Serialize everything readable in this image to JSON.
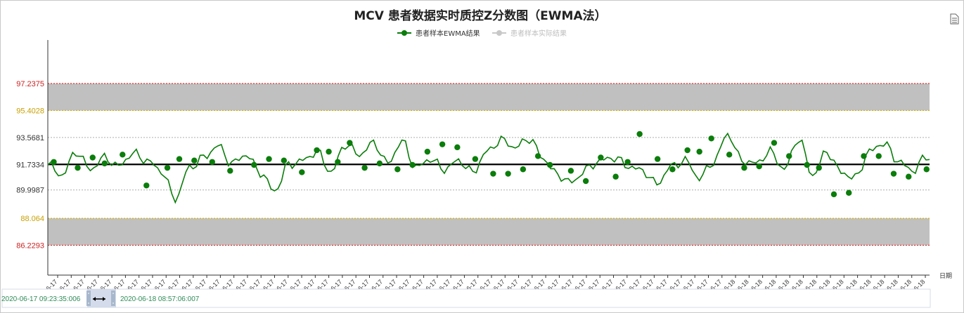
{
  "chart_data": {
    "type": "line",
    "title": "MCV 患者数据实时质控Z分数图（EWMA法）",
    "xlabel": "日期",
    "ylabel": "",
    "legend": {
      "placement": "top-center",
      "items": [
        {
          "name": "患者样本EWMA结果",
          "color": "#0a7d0a",
          "active": true
        },
        {
          "name": "患者样本实际结果",
          "color": "#c8c8c8",
          "active": false
        }
      ]
    },
    "ylim": [
      84.2,
      100.2
    ],
    "yticks": [
      "97.2375",
      "95.4028",
      "93.5681",
      "91.7334",
      "89.9987",
      "88.064",
      "86.2293"
    ],
    "ytick_values": [
      97.2375,
      95.4028,
      93.5681,
      91.7334,
      89.9987,
      88.064,
      86.2293
    ],
    "ytick_colors": [
      "#cc2222",
      "#c8a000",
      "#333333",
      "#333333",
      "#333333",
      "#c8a000",
      "#cc2222"
    ],
    "mean": 91.7334,
    "control_limits": {
      "upper_3sd": 97.2375,
      "upper_2sd": 95.4028,
      "lower_2sd": 88.064,
      "lower_3sd": 86.2293
    },
    "x_count": 250,
    "xtick_labels": [
      "06-17",
      "06-17",
      "06-17",
      "06-17",
      "06-17",
      "06-17",
      "06-17",
      "06-17",
      "06-17",
      "06-17",
      "06-17",
      "06-17",
      "06-17",
      "06-17",
      "06-17",
      "06-17",
      "06-17",
      "06-17",
      "06-17",
      "06-17",
      "06-17",
      "06-17",
      "06-17",
      "06-17",
      "06-17",
      "06-17",
      "06-17",
      "06-17",
      "06-17",
      "06-17",
      "06-17",
      "06-17",
      "06-17",
      "06-17",
      "06-17",
      "06-17",
      "06-17",
      "06-17",
      "06-17",
      "06-17",
      "06-17",
      "06-17",
      "06-17",
      "06-17",
      "06-17",
      "06-17",
      "06-17",
      "06-17",
      "06-17",
      "06-17",
      "06-18",
      "06-18",
      "06-18",
      "06-18",
      "06-18",
      "06-18",
      "06-18",
      "06-18",
      "06-18",
      "06-18",
      "06-18",
      "06-18",
      "06-18",
      "06-18",
      "06-18"
    ],
    "ewma_series": [
      {
        "x": 0,
        "y": 91.7
      },
      {
        "x": 4,
        "y": 91.0
      },
      {
        "x": 8,
        "y": 92.6
      },
      {
        "x": 12,
        "y": 91.4
      },
      {
        "x": 16,
        "y": 92.2
      },
      {
        "x": 20,
        "y": 91.6
      },
      {
        "x": 24,
        "y": 92.5
      },
      {
        "x": 28,
        "y": 92.0
      },
      {
        "x": 32,
        "y": 91.3
      },
      {
        "x": 36,
        "y": 89.4
      },
      {
        "x": 40,
        "y": 91.5
      },
      {
        "x": 44,
        "y": 92.2
      },
      {
        "x": 48,
        "y": 93.0
      },
      {
        "x": 52,
        "y": 91.8
      },
      {
        "x": 56,
        "y": 92.4
      },
      {
        "x": 60,
        "y": 91.2
      },
      {
        "x": 64,
        "y": 89.9
      },
      {
        "x": 68,
        "y": 91.7
      },
      {
        "x": 72,
        "y": 92.0
      },
      {
        "x": 76,
        "y": 92.6
      },
      {
        "x": 80,
        "y": 91.2
      },
      {
        "x": 84,
        "y": 93.1
      },
      {
        "x": 88,
        "y": 92.4
      },
      {
        "x": 92,
        "y": 93.2
      },
      {
        "x": 96,
        "y": 91.8
      },
      {
        "x": 100,
        "y": 93.3
      },
      {
        "x": 104,
        "y": 91.5
      },
      {
        "x": 108,
        "y": 92.1
      },
      {
        "x": 112,
        "y": 91.4
      },
      {
        "x": 116,
        "y": 92.0
      },
      {
        "x": 120,
        "y": 91.2
      },
      {
        "x": 124,
        "y": 92.6
      },
      {
        "x": 128,
        "y": 93.4
      },
      {
        "x": 132,
        "y": 92.9
      },
      {
        "x": 136,
        "y": 93.5
      },
      {
        "x": 140,
        "y": 92.1
      },
      {
        "x": 144,
        "y": 91.0
      },
      {
        "x": 148,
        "y": 90.5
      },
      {
        "x": 152,
        "y": 91.4
      },
      {
        "x": 156,
        "y": 92.0
      },
      {
        "x": 160,
        "y": 92.2
      },
      {
        "x": 164,
        "y": 91.6
      },
      {
        "x": 168,
        "y": 91.3
      },
      {
        "x": 172,
        "y": 90.4
      },
      {
        "x": 176,
        "y": 91.6
      },
      {
        "x": 180,
        "y": 92.0
      },
      {
        "x": 184,
        "y": 90.8
      },
      {
        "x": 188,
        "y": 91.9
      },
      {
        "x": 192,
        "y": 93.8
      },
      {
        "x": 196,
        "y": 92.0
      },
      {
        "x": 200,
        "y": 91.8
      },
      {
        "x": 204,
        "y": 92.6
      },
      {
        "x": 208,
        "y": 91.4
      },
      {
        "x": 212,
        "y": 93.5
      },
      {
        "x": 216,
        "y": 91.0
      },
      {
        "x": 220,
        "y": 92.6
      },
      {
        "x": 224,
        "y": 91.2
      },
      {
        "x": 228,
        "y": 90.8
      },
      {
        "x": 232,
        "y": 92.6
      },
      {
        "x": 236,
        "y": 93.2
      },
      {
        "x": 240,
        "y": 92.0
      },
      {
        "x": 244,
        "y": 91.3
      },
      {
        "x": 248,
        "y": 92.2
      }
    ],
    "ewma_points": [
      {
        "x": 2,
        "y": 91.9
      },
      {
        "x": 10,
        "y": 91.5
      },
      {
        "x": 15,
        "y": 92.2
      },
      {
        "x": 19,
        "y": 91.8
      },
      {
        "x": 25,
        "y": 92.4
      },
      {
        "x": 33,
        "y": 90.3
      },
      {
        "x": 40,
        "y": 91.5
      },
      {
        "x": 44,
        "y": 92.1
      },
      {
        "x": 49,
        "y": 92.0
      },
      {
        "x": 55,
        "y": 91.9
      },
      {
        "x": 61,
        "y": 91.3
      },
      {
        "x": 69,
        "y": 91.7
      },
      {
        "x": 74,
        "y": 92.1
      },
      {
        "x": 79,
        "y": 92.0
      },
      {
        "x": 85,
        "y": 91.2
      },
      {
        "x": 90,
        "y": 92.7
      },
      {
        "x": 94,
        "y": 92.6
      },
      {
        "x": 97,
        "y": 91.9
      },
      {
        "x": 101,
        "y": 93.2
      },
      {
        "x": 106,
        "y": 91.5
      },
      {
        "x": 111,
        "y": 91.8
      },
      {
        "x": 117,
        "y": 91.4
      },
      {
        "x": 122,
        "y": 91.7
      },
      {
        "x": 127,
        "y": 92.6
      },
      {
        "x": 132,
        "y": 93.1
      },
      {
        "x": 137,
        "y": 92.9
      },
      {
        "x": 143,
        "y": 92.1
      },
      {
        "x": 149,
        "y": 91.1
      },
      {
        "x": 154,
        "y": 91.1
      },
      {
        "x": 159,
        "y": 91.4
      },
      {
        "x": 164,
        "y": 92.3
      },
      {
        "x": 168,
        "y": 91.7
      },
      {
        "x": 175,
        "y": 91.3
      },
      {
        "x": 180,
        "y": 90.6
      },
      {
        "x": 185,
        "y": 92.2
      },
      {
        "x": 190,
        "y": 90.9
      },
      {
        "x": 194,
        "y": 91.9
      },
      {
        "x": 198,
        "y": 93.8
      },
      {
        "x": 204,
        "y": 92.1
      },
      {
        "x": 209,
        "y": 91.4
      },
      {
        "x": 214,
        "y": 92.7
      },
      {
        "x": 218,
        "y": 92.6
      },
      {
        "x": 222,
        "y": 93.5
      },
      {
        "x": 228,
        "y": 92.4
      },
      {
        "x": 233,
        "y": 91.5
      },
      {
        "x": 238,
        "y": 91.6
      },
      {
        "x": 243,
        "y": 93.2
      },
      {
        "x": 248,
        "y": 92.3
      },
      {
        "x": 254,
        "y": 91.7
      },
      {
        "x": 258,
        "y": 91.5
      },
      {
        "x": 263,
        "y": 89.7
      },
      {
        "x": 268,
        "y": 89.8
      },
      {
        "x": 273,
        "y": 92.3
      },
      {
        "x": 278,
        "y": 92.3
      },
      {
        "x": 283,
        "y": 91.1
      },
      {
        "x": 288,
        "y": 90.9
      },
      {
        "x": 294,
        "y": 91.4
      }
    ],
    "grid": true
  },
  "slider": {
    "start_label": "2020-06-17 09:23:35:006",
    "end_label": "2020-06-18 08:57:06:007"
  },
  "toolbox": {
    "icon": "document-icon"
  }
}
